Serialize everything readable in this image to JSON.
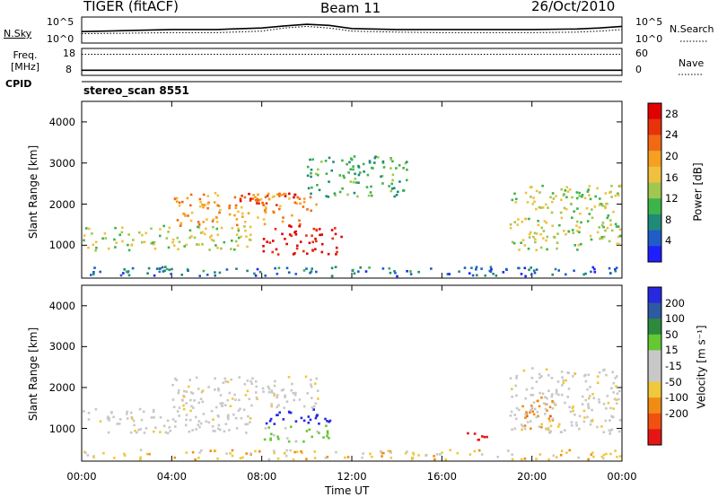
{
  "header": {
    "title": "TIGER (fitACF)",
    "beam": "Beam 11",
    "date": "26/Oct/2010"
  },
  "colors": {
    "power_scale": [
      "#1e1eff",
      "#1f5cc8",
      "#208a78",
      "#3cb44a",
      "#a0c850",
      "#f0c040",
      "#f5a020",
      "#f06a14",
      "#e8320a",
      "#e00000"
    ],
    "velocity_scale": [
      "#2828e0",
      "#2d5aa0",
      "#2d8a3c",
      "#64c832",
      "#c8c8c8",
      "#c8c8c8",
      "#f0c83c",
      "#f08c14",
      "#f05010",
      "#e61414"
    ],
    "background_scatter": "#808080"
  },
  "chart_data": [
    {
      "type": "line",
      "title": "N.Sky",
      "right_label": "N.Search",
      "yticks_left": [
        "10^5",
        "10^0"
      ],
      "yticks_right": [
        "10^5",
        "10^0"
      ],
      "x": [
        "00:00",
        "02:00",
        "04:00",
        "06:00",
        "08:00",
        "09:00",
        "10:00",
        "11:00",
        "12:00",
        "14:00",
        "16:00",
        "18:00",
        "20:00",
        "22:00",
        "23:00",
        "00:00"
      ],
      "series": [
        {
          "name": "N.Sky",
          "style": "solid",
          "values": [
            2.2,
            2.4,
            2.6,
            2.6,
            2.9,
            3.3,
            3.6,
            3.4,
            2.8,
            2.6,
            2.6,
            2.6,
            2.6,
            2.7,
            2.9,
            3.2
          ]
        },
        {
          "name": "N.Search",
          "style": "dotted",
          "values": [
            1.8,
            1.9,
            2.0,
            2.0,
            2.3,
            2.9,
            3.2,
            2.9,
            2.3,
            2.1,
            2.0,
            2.0,
            2.0,
            2.1,
            2.3,
            2.6
          ]
        }
      ]
    },
    {
      "type": "line",
      "title": "Freq. [MHz]",
      "right_label": "Nave",
      "yticks_left": [
        "18",
        "8"
      ],
      "yticks_right": [
        "60",
        "0"
      ],
      "series": [
        {
          "name": "Freq.",
          "style": "solid",
          "values": [
            9.9,
            9.9
          ]
        },
        {
          "name": "Nave",
          "style": "dotted",
          "values": [
            47,
            47
          ]
        }
      ]
    },
    {
      "type": "text",
      "title": "CPID",
      "value": "stereo_scan 8551"
    },
    {
      "type": "heatmap",
      "ylabel": "Slant Range [km]",
      "yticks": [
        "1000",
        "2000",
        "3000",
        "4000"
      ],
      "ylim": [
        200,
        4500
      ],
      "colorbar_label": "Power [dB]",
      "colorbar_ticks": [
        "4",
        "8",
        "12",
        "16",
        "20",
        "24",
        "28"
      ],
      "clim": [
        0,
        30
      ],
      "echo_regions": [
        {
          "t_range_h": [
            0.0,
            7.5
          ],
          "range_km": [
            900,
            1500
          ],
          "power_db": 14
        },
        {
          "t_range_h": [
            4.0,
            10.5
          ],
          "range_km": [
            1500,
            2300
          ],
          "power_db": 20
        },
        {
          "t_range_h": [
            8.0,
            11.5
          ],
          "range_km": [
            800,
            1500
          ],
          "power_db": 29
        },
        {
          "t_range_h": [
            7.0,
            10.0
          ],
          "range_km": [
            2000,
            2300
          ],
          "power_db": 26
        },
        {
          "t_range_h": [
            10.0,
            14.5
          ],
          "range_km": [
            2200,
            3200
          ],
          "power_db": 10
        },
        {
          "t_range_h": [
            19.0,
            24.0
          ],
          "range_km": [
            900,
            2500
          ],
          "power_db": 14
        },
        {
          "t_range_h": [
            0.0,
            24.0
          ],
          "range_km": [
            200,
            500
          ],
          "power_db": 6
        }
      ]
    },
    {
      "type": "heatmap",
      "ylabel": "Slant Range [km]",
      "xlabel": "Time UT",
      "yticks": [
        "1000",
        "2000",
        "3000",
        "4000"
      ],
      "xticks": [
        "00:00",
        "04:00",
        "08:00",
        "12:00",
        "16:00",
        "20:00",
        "00:00"
      ],
      "ylim": [
        200,
        4500
      ],
      "colorbar_label": "Velocity [m s⁻¹]",
      "colorbar_ticks": [
        "200",
        "100",
        "50",
        "15",
        "-15",
        "-50",
        "-100",
        "-200"
      ],
      "clim": [
        -250,
        250
      ],
      "echo_regions": [
        {
          "t_range_h": [
            0.0,
            7.5
          ],
          "range_km": [
            900,
            1500
          ],
          "velocity_ms": 0
        },
        {
          "t_range_h": [
            4.0,
            10.5
          ],
          "range_km": [
            1500,
            2300
          ],
          "velocity_ms": 0
        },
        {
          "t_range_h": [
            8.0,
            11.0
          ],
          "range_km": [
            1100,
            1500
          ],
          "velocity_ms": 180
        },
        {
          "t_range_h": [
            8.0,
            11.0
          ],
          "range_km": [
            700,
            1100
          ],
          "velocity_ms": 40
        },
        {
          "t_range_h": [
            17.0,
            18.0
          ],
          "range_km": [
            700,
            1000
          ],
          "velocity_ms": -180
        },
        {
          "t_range_h": [
            19.5,
            21.0
          ],
          "range_km": [
            1000,
            1800
          ],
          "velocity_ms": -60
        },
        {
          "t_range_h": [
            19.0,
            24.0
          ],
          "range_km": [
            900,
            2500
          ],
          "velocity_ms": 0
        },
        {
          "t_range_h": [
            0.0,
            24.0
          ],
          "range_km": [
            200,
            500
          ],
          "velocity_ms": -20
        }
      ]
    }
  ]
}
